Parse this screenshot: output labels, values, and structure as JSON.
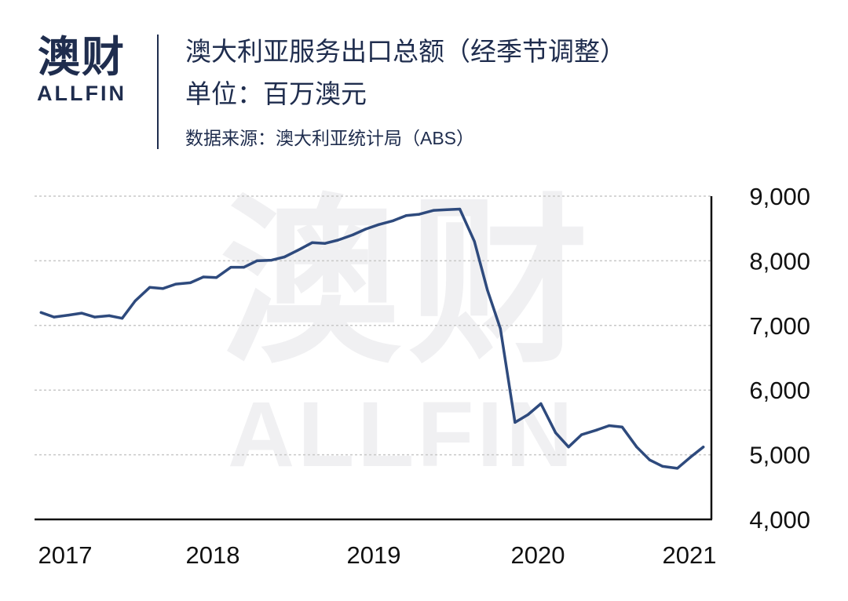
{
  "logo": {
    "cn": "澳财",
    "en": "ALLFIN"
  },
  "header": {
    "title": "澳大利亚服务出口总额（经季节调整）",
    "unit": "单位：百万澳元",
    "source_label": "数据来源：澳大利亚统计局（",
    "source_abbr": "ABS",
    "source_end": "）"
  },
  "watermark": {
    "cn": "澳财",
    "en": "ALLFIN"
  },
  "colors": {
    "line": "#2e4a7d",
    "text": "#1f2d4e",
    "grid": "#c8c8c8",
    "accent": "#c8102e"
  },
  "chart_data": {
    "type": "line",
    "title": "澳大利亚服务出口总额（经季节调整）",
    "ylabel": "单位：百万澳元",
    "ylim": [
      4000,
      9000
    ],
    "yticks": [
      {
        "value": 9000,
        "label": "9,000"
      },
      {
        "value": 8000,
        "label": "8,000"
      },
      {
        "value": 7000,
        "label": "7,000"
      },
      {
        "value": 6000,
        "label": "6,000"
      },
      {
        "value": 5000,
        "label": "5,000"
      },
      {
        "value": 4000,
        "label": "4,000"
      }
    ],
    "xlim": [
      2017.0,
      2021.17
    ],
    "xticks": [
      {
        "value": 2017.0,
        "label": "2017"
      },
      {
        "value": 2018.0,
        "label": "2018"
      },
      {
        "value": 2019.0,
        "label": "2019"
      },
      {
        "value": 2020.0,
        "label": "2020"
      },
      {
        "value": 2021.0,
        "label": "2021"
      }
    ],
    "grid": true,
    "y_axis_side": "right",
    "series": [
      {
        "x": [
          2017.04,
          2017.12,
          2017.21,
          2017.29,
          2017.37,
          2017.46,
          2017.54,
          2017.62,
          2017.71,
          2017.79,
          2017.87,
          2017.96,
          2018.04,
          2018.12,
          2018.21,
          2018.29,
          2018.37,
          2018.46,
          2018.54,
          2018.62,
          2018.71,
          2018.79,
          2018.87,
          2018.96,
          2019.04,
          2019.12,
          2019.21,
          2019.29,
          2019.37,
          2019.46,
          2019.54,
          2019.62,
          2019.71,
          2019.79,
          2019.87,
          2019.96,
          2020.04,
          2020.12,
          2020.21,
          2020.29,
          2020.37,
          2020.46,
          2020.54,
          2020.62,
          2020.71,
          2020.79,
          2020.87,
          2020.96,
          2021.04,
          2021.12
        ],
        "values": [
          7200,
          7130,
          7160,
          7190,
          7130,
          7150,
          7110,
          7380,
          7590,
          7570,
          7640,
          7660,
          7750,
          7740,
          7900,
          7900,
          8000,
          8010,
          8060,
          8160,
          8280,
          8270,
          8320,
          8400,
          8490,
          8560,
          8620,
          8700,
          8720,
          8780,
          8790,
          8800,
          8300,
          7550,
          6950,
          5500,
          5620,
          5790,
          5340,
          5120,
          5310,
          5380,
          5450,
          5430,
          5120,
          4920,
          4820,
          4790,
          4960,
          5120
        ]
      }
    ]
  }
}
